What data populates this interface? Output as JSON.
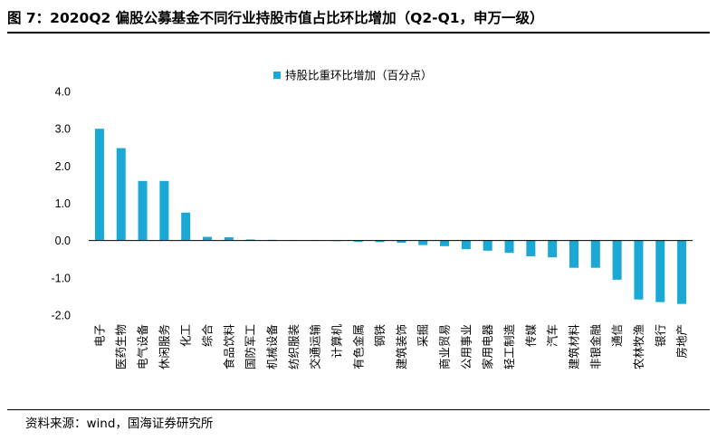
{
  "header": {
    "title": "图 7：2020Q2 偏股公募基金不同行业持股市值占比环比增加（Q2-Q1，申万一级）"
  },
  "footer": {
    "source": "资料来源：wind，国海证券研究所"
  },
  "colors": {
    "bar": "#1CA8D4",
    "axis": "#000000"
  },
  "chart_data": {
    "type": "bar",
    "title": "",
    "xlabel": "",
    "ylabel": "",
    "ylim": [
      -2.0,
      4.0
    ],
    "yticks": [
      "4.0",
      "3.0",
      "2.0",
      "1.0",
      "0.0",
      "-1.0",
      "-2.0"
    ],
    "ytick_values": [
      4,
      3,
      2,
      1,
      0,
      -1,
      -2
    ],
    "grid": false,
    "legend_position": "top-center",
    "categories": [
      "电子",
      "医药生物",
      "电气设备",
      "休闲服务",
      "化工",
      "综合",
      "食品饮料",
      "国防军工",
      "机械设备",
      "纺织服装",
      "交通运输",
      "计算机",
      "有色金属",
      "钢铁",
      "建筑装饰",
      "采掘",
      "商业贸易",
      "公用事业",
      "家用电器",
      "轻工制造",
      "传媒",
      "汽车",
      "建筑材料",
      "非银金融",
      "通信",
      "农林牧渔",
      "银行",
      "房地产"
    ],
    "series": [
      {
        "name": "持股比重环比增加（百分点）",
        "values": [
          3.0,
          2.48,
          1.6,
          1.6,
          0.75,
          0.1,
          0.09,
          0.03,
          0.02,
          0.01,
          0.01,
          0.0,
          -0.03,
          -0.04,
          -0.06,
          -0.12,
          -0.15,
          -0.23,
          -0.27,
          -0.33,
          -0.42,
          -0.45,
          -0.73,
          -0.73,
          -1.05,
          -1.58,
          -1.65,
          -1.7
        ]
      }
    ]
  }
}
